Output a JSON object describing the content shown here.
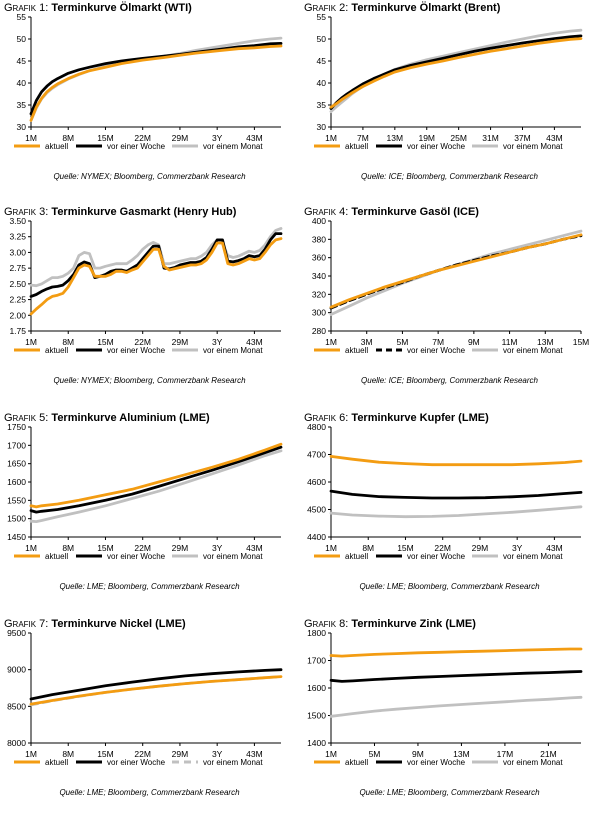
{
  "colors": {
    "aktuell": "#f39c12",
    "woche": "#000000",
    "monat": "#c0c0c0"
  },
  "chart_data": [
    {
      "type": "line",
      "prefix": "Grafik 1:",
      "name": "Terminkurve Ölmarkt (WTI)",
      "source": "Quelle: NYMEX; Bloomberg, Commerzbank Research",
      "ylim": [
        30,
        55
      ],
      "yticks": [
        30,
        35,
        40,
        45,
        50,
        55
      ],
      "xlim": [
        1,
        48
      ],
      "x": [
        1,
        2,
        3,
        4,
        5,
        6,
        8,
        10,
        12,
        15,
        18,
        22,
        26,
        29,
        32,
        36,
        40,
        43,
        46,
        48
      ],
      "xticks": [
        1,
        8,
        15,
        22,
        29,
        36,
        43
      ],
      "xticklabels": [
        "1M",
        "8M",
        "15M",
        "22M",
        "29M",
        "3Y",
        "43M"
      ],
      "legend": [
        "aktuell",
        "vor einer Woche",
        "vor einem Monat"
      ],
      "series": [
        {
          "name": "aktuell",
          "dash": "",
          "values": [
            31.5,
            34.5,
            36.5,
            38,
            39,
            39.8,
            41,
            42,
            42.8,
            43.6,
            44.4,
            45.2,
            45.8,
            46.3,
            46.8,
            47.3,
            47.8,
            48,
            48.3,
            48.4
          ]
        },
        {
          "name": "vor einer Woche",
          "dash": "",
          "values": [
            33,
            36,
            38,
            39.3,
            40.3,
            41,
            42.2,
            43,
            43.6,
            44.4,
            45,
            45.6,
            46.1,
            46.5,
            47,
            47.6,
            48.2,
            48.5,
            48.9,
            49
          ]
        },
        {
          "name": "vor einem Monat",
          "dash": "",
          "values": [
            31.5,
            34.3,
            36.4,
            37.8,
            38.8,
            39.6,
            40.9,
            41.9,
            42.8,
            43.8,
            44.7,
            45.4,
            46.1,
            46.7,
            47.4,
            48.2,
            49,
            49.6,
            50,
            50.2
          ]
        }
      ]
    },
    {
      "type": "line",
      "prefix": "Grafik 2:",
      "name": "Terminkurve Ölmarkt (Brent)",
      "source": "Quelle: ICE; Bloomberg, Commerzbank Research",
      "ylim": [
        30,
        55
      ],
      "yticks": [
        30,
        35,
        40,
        45,
        50,
        55
      ],
      "xlim": [
        1,
        48
      ],
      "x": [
        1,
        2,
        3,
        4,
        5,
        7,
        9,
        11,
        13,
        16,
        19,
        22,
        25,
        28,
        31,
        34,
        37,
        40,
        43,
        46,
        48
      ],
      "xticks": [
        1,
        7,
        13,
        19,
        25,
        31,
        37,
        43
      ],
      "xticklabels": [
        "1M",
        "7M",
        "13M",
        "19M",
        "25M",
        "31M",
        "37M",
        "43M"
      ],
      "legend": [
        "aktuell",
        "vor einer Woche",
        "vor einem Monat"
      ],
      "series": [
        {
          "name": "aktuell",
          "dash": "",
          "values": [
            34.5,
            35.3,
            36.2,
            37,
            37.8,
            39.2,
            40.4,
            41.5,
            42.5,
            43.5,
            44.3,
            45,
            45.8,
            46.5,
            47.2,
            47.8,
            48.4,
            49,
            49.5,
            49.9,
            50.1
          ]
        },
        {
          "name": "vor einer Woche",
          "dash": "",
          "values": [
            34.2,
            35.5,
            36.6,
            37.5,
            38.3,
            39.8,
            41,
            42,
            43,
            44,
            44.8,
            45.6,
            46.4,
            47.2,
            47.9,
            48.5,
            49.1,
            49.6,
            50.1,
            50.5,
            50.7
          ]
        },
        {
          "name": "vor einem Monat",
          "dash": "",
          "values": [
            33.5,
            34.6,
            35.6,
            36.6,
            37.6,
            39.3,
            40.8,
            42,
            43.1,
            44.3,
            45.3,
            46.1,
            46.9,
            47.7,
            48.5,
            49.3,
            50,
            50.7,
            51.3,
            51.8,
            52
          ]
        }
      ]
    },
    {
      "type": "line",
      "prefix": "Grafik 3:",
      "name": "Terminkurve Gasmarkt (Henry Hub)",
      "source": "Quelle: NYMEX; Bloomberg, Commerzbank Research",
      "ylim": [
        1.75,
        3.5
      ],
      "yticks": [
        1.75,
        2.0,
        2.25,
        2.5,
        2.75,
        3.0,
        3.25,
        3.5
      ],
      "xlim": [
        1,
        48
      ],
      "x": [
        1,
        2,
        3,
        4,
        5,
        6,
        7,
        8,
        9,
        10,
        11,
        12,
        13,
        14,
        15,
        16,
        17,
        18,
        19,
        20,
        21,
        22,
        23,
        24,
        25,
        26,
        27,
        28,
        29,
        30,
        31,
        32,
        33,
        34,
        35,
        36,
        37,
        38,
        39,
        40,
        41,
        42,
        43,
        44,
        45,
        46,
        47,
        48
      ],
      "xticks": [
        1,
        8,
        15,
        22,
        29,
        36,
        43
      ],
      "xticklabels": [
        "1M",
        "8M",
        "15M",
        "22M",
        "29M",
        "3Y",
        "43M"
      ],
      "legend": [
        "aktuell",
        "vor einer Woche",
        "vor einem Monat"
      ],
      "series": [
        {
          "name": "aktuell",
          "dash": "",
          "values": [
            2.02,
            2.1,
            2.17,
            2.25,
            2.3,
            2.32,
            2.35,
            2.45,
            2.6,
            2.75,
            2.8,
            2.78,
            2.62,
            2.62,
            2.62,
            2.65,
            2.7,
            2.7,
            2.68,
            2.72,
            2.75,
            2.85,
            2.95,
            3.05,
            3.05,
            2.78,
            2.72,
            2.74,
            2.76,
            2.78,
            2.8,
            2.8,
            2.82,
            2.88,
            3.0,
            3.15,
            3.15,
            2.82,
            2.8,
            2.82,
            2.86,
            2.9,
            2.88,
            2.9,
            3.0,
            3.12,
            3.2,
            3.22
          ]
        },
        {
          "name": "vor einer Woche",
          "dash": "",
          "values": [
            2.3,
            2.33,
            2.38,
            2.42,
            2.45,
            2.46,
            2.48,
            2.55,
            2.65,
            2.8,
            2.85,
            2.82,
            2.6,
            2.62,
            2.65,
            2.7,
            2.72,
            2.72,
            2.7,
            2.75,
            2.8,
            2.9,
            3.0,
            3.1,
            3.1,
            2.75,
            2.74,
            2.76,
            2.8,
            2.82,
            2.84,
            2.84,
            2.86,
            2.92,
            3.05,
            3.2,
            3.2,
            2.86,
            2.85,
            2.87,
            2.9,
            2.95,
            2.93,
            2.95,
            3.05,
            3.2,
            3.3,
            3.3
          ]
        },
        {
          "name": "vor einem Monat",
          "dash": "",
          "values": [
            2.48,
            2.47,
            2.5,
            2.55,
            2.6,
            2.6,
            2.62,
            2.67,
            2.75,
            2.95,
            3.0,
            2.98,
            2.75,
            2.75,
            2.78,
            2.8,
            2.82,
            2.82,
            2.82,
            2.88,
            2.95,
            3.05,
            3.12,
            3.16,
            3.12,
            2.82,
            2.82,
            2.84,
            2.86,
            2.88,
            2.9,
            2.9,
            2.94,
            3.0,
            3.12,
            3.2,
            3.15,
            2.95,
            2.92,
            2.94,
            2.98,
            3.02,
            3.0,
            3.03,
            3.12,
            3.25,
            3.35,
            3.38
          ]
        }
      ]
    },
    {
      "type": "line",
      "prefix": "Grafik 4:",
      "name": "Terminkurve Gasöl (ICE)",
      "source": "Quelle: ICE; Bloomberg, Commerzbank Research",
      "ylim": [
        280,
        400
      ],
      "yticks": [
        280,
        300,
        320,
        340,
        360,
        380,
        400
      ],
      "xlim": [
        1,
        15
      ],
      "x": [
        1,
        2,
        3,
        4,
        5,
        6,
        7,
        8,
        9,
        10,
        11,
        12,
        13,
        14,
        15
      ],
      "xticks": [
        1,
        3,
        5,
        7,
        9,
        11,
        13,
        15
      ],
      "xticklabels": [
        "1M",
        "3M",
        "5M",
        "7M",
        "9M",
        "11M",
        "13M",
        "15M"
      ],
      "legend": [
        "aktuell",
        "vor einer Woche",
        "vor einem Monat"
      ],
      "series": [
        {
          "name": "aktuell",
          "dash": "",
          "values": [
            306,
            314,
            321,
            328,
            334,
            340,
            346,
            351,
            356,
            361,
            366,
            371,
            375,
            380,
            385
          ]
        },
        {
          "name": "vor einer Woche",
          "dash": "6,4",
          "values": [
            305,
            313,
            320,
            327,
            333,
            340,
            346,
            352,
            357,
            362,
            366,
            371,
            375,
            380,
            384
          ]
        },
        {
          "name": "vor einem Monat",
          "dash": "",
          "values": [
            298,
            307,
            316,
            324,
            332,
            339,
            346,
            352,
            358,
            364,
            369,
            374,
            379,
            384,
            389
          ]
        }
      ]
    },
    {
      "type": "line",
      "prefix": "Grafik 5:",
      "name": "Terminkurve Aluminium (LME)",
      "source": "Quelle: LME; Bloomberg, Commerzbank Research",
      "ylim": [
        1450,
        1750
      ],
      "yticks": [
        1450,
        1500,
        1550,
        1600,
        1650,
        1700,
        1750
      ],
      "xlim": [
        1,
        48
      ],
      "x": [
        1,
        2,
        3,
        6,
        10,
        15,
        20,
        25,
        30,
        35,
        40,
        45,
        48
      ],
      "xticks": [
        1,
        8,
        15,
        22,
        29,
        36,
        43
      ],
      "xticklabels": [
        "1M",
        "8M",
        "15M",
        "22M",
        "29M",
        "3Y",
        "43M"
      ],
      "legend": [
        "aktuell",
        "vor einer Woche",
        "vor einem Monat"
      ],
      "series": [
        {
          "name": "aktuell",
          "dash": "",
          "values": [
            1535,
            1532,
            1535,
            1540,
            1550,
            1565,
            1580,
            1600,
            1620,
            1640,
            1662,
            1687,
            1703
          ]
        },
        {
          "name": "vor einer Woche",
          "dash": "",
          "values": [
            1522,
            1518,
            1520,
            1525,
            1535,
            1550,
            1567,
            1588,
            1610,
            1632,
            1655,
            1680,
            1695
          ]
        },
        {
          "name": "vor einem Monat",
          "dash": "",
          "values": [
            1493,
            1492,
            1495,
            1505,
            1518,
            1535,
            1555,
            1575,
            1598,
            1622,
            1646,
            1672,
            1685
          ]
        }
      ]
    },
    {
      "type": "line",
      "prefix": "Grafik 6:",
      "name": "Terminkurve Kupfer (LME)",
      "source": "Quelle: LME; Bloomberg, Commerzbank Research",
      "ylim": [
        4400,
        4800
      ],
      "yticks": [
        4400,
        4500,
        4600,
        4700,
        4800
      ],
      "xlim": [
        1,
        48
      ],
      "x": [
        1,
        5,
        10,
        15,
        20,
        25,
        30,
        35,
        40,
        45,
        48
      ],
      "xticks": [
        1,
        8,
        15,
        22,
        29,
        36,
        43
      ],
      "xticklabels": [
        "1M",
        "8M",
        "15M",
        "22M",
        "29M",
        "3Y",
        "43M"
      ],
      "legend": [
        "aktuell",
        "vor einer Woche",
        "vor einem Monat"
      ],
      "series": [
        {
          "name": "aktuell",
          "dash": "",
          "values": [
            4693,
            4683,
            4672,
            4667,
            4663,
            4663,
            4663,
            4663,
            4666,
            4671,
            4676
          ]
        },
        {
          "name": "vor einer Woche",
          "dash": "",
          "values": [
            4567,
            4555,
            4547,
            4544,
            4542,
            4542,
            4543,
            4546,
            4551,
            4558,
            4562
          ]
        },
        {
          "name": "vor einem Monat",
          "dash": "",
          "values": [
            4487,
            4480,
            4476,
            4474,
            4475,
            4478,
            4484,
            4490,
            4497,
            4505,
            4510
          ]
        }
      ]
    },
    {
      "type": "line",
      "prefix": "Grafik 7:",
      "name": "Terminkurve Nickel (LME)",
      "source": "Quelle: LME; Bloomberg, Commerzbank Research",
      "ylim": [
        8000,
        9500
      ],
      "yticks": [
        8000,
        8500,
        9000,
        9500
      ],
      "xlim": [
        1,
        48
      ],
      "x": [
        1,
        5,
        10,
        15,
        20,
        25,
        30,
        35,
        40,
        45,
        48
      ],
      "xticks": [
        1,
        8,
        15,
        22,
        29,
        36,
        43
      ],
      "xticklabels": [
        "1M",
        "8M",
        "15M",
        "22M",
        "29M",
        "3Y",
        "43M"
      ],
      "legend": [
        "aktuell",
        "vor einer Woche",
        "vor einem Monat"
      ],
      "series": [
        {
          "name": "aktuell",
          "dash": "",
          "values": [
            8530,
            8580,
            8640,
            8690,
            8735,
            8775,
            8810,
            8840,
            8865,
            8890,
            8905
          ]
        },
        {
          "name": "vor einer Woche",
          "dash": "",
          "values": [
            8600,
            8660,
            8720,
            8780,
            8830,
            8875,
            8915,
            8945,
            8970,
            8990,
            9000
          ]
        },
        {
          "name": "vor einem Monat",
          "dash": "7,5",
          "values": [
            8520,
            8575,
            8635,
            8690,
            8735,
            8775,
            8810,
            8840,
            8865,
            8890,
            8905
          ]
        }
      ]
    },
    {
      "type": "line",
      "prefix": "Grafik 8:",
      "name": "Terminkurve Zink (LME)",
      "source": "Quelle: LME; Bloomberg, Commerzbank Research",
      "ylim": [
        1400,
        1800
      ],
      "yticks": [
        1400,
        1500,
        1600,
        1700,
        1800
      ],
      "xlim": [
        1,
        24
      ],
      "x": [
        1,
        2,
        3,
        5,
        7,
        9,
        11,
        13,
        15,
        17,
        19,
        21,
        23,
        24
      ],
      "xticks": [
        1,
        5,
        9,
        13,
        17,
        21
      ],
      "xticklabels": [
        "1M",
        "5M",
        "9M",
        "13M",
        "17M",
        "21M"
      ],
      "legend": [
        "aktuell",
        "vor einer Woche",
        "vor einem Monat"
      ],
      "series": [
        {
          "name": "aktuell",
          "dash": "",
          "values": [
            1718,
            1716,
            1718,
            1722,
            1725,
            1728,
            1730,
            1732,
            1734,
            1736,
            1738,
            1740,
            1742,
            1742
          ]
        },
        {
          "name": "vor einer Woche",
          "dash": "",
          "values": [
            1628,
            1624,
            1626,
            1631,
            1635,
            1639,
            1642,
            1645,
            1648,
            1651,
            1654,
            1656,
            1659,
            1660
          ]
        },
        {
          "name": "vor einem Monat",
          "dash": "",
          "values": [
            1497,
            1502,
            1507,
            1516,
            1523,
            1529,
            1535,
            1540,
            1545,
            1550,
            1555,
            1559,
            1564,
            1566
          ]
        }
      ]
    }
  ]
}
